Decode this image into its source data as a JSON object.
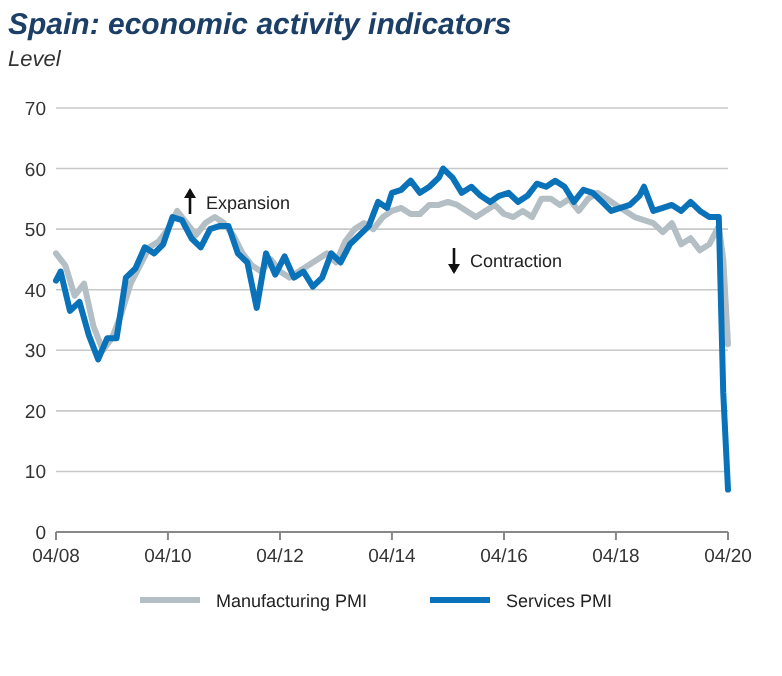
{
  "chart_data": {
    "type": "line",
    "title": "Spain: economic activity indicators",
    "subtitle": "Level",
    "annotations": [
      "Expansion",
      "Contraction"
    ],
    "xlim": [
      "2008-04",
      "2020-04"
    ],
    "xticks": [
      {
        "value": "2008-04",
        "label": "04/08"
      },
      {
        "value": "2010-04",
        "label": "04/10"
      },
      {
        "value": "2012-04",
        "label": "04/12"
      },
      {
        "value": "2014-04",
        "label": "04/14"
      },
      {
        "value": "2016-04",
        "label": "04/16"
      },
      {
        "value": "2018-04",
        "label": "04/18"
      },
      {
        "value": "2020-04",
        "label": "04/20"
      }
    ],
    "ylim": [
      0,
      70
    ],
    "yticks": [
      0,
      10,
      20,
      30,
      40,
      50,
      60,
      70
    ],
    "grid": "y",
    "legend": "bottom",
    "line_style": "solid",
    "marker": "none",
    "series": [
      {
        "name": "Manufacturing PMI",
        "color": "#b3bfc4",
        "x": [
          "2008-04",
          "2008-06",
          "2008-08",
          "2008-10",
          "2008-12",
          "2009-02",
          "2009-04",
          "2009-06",
          "2009-08",
          "2009-10",
          "2009-12",
          "2010-02",
          "2010-04",
          "2010-06",
          "2010-08",
          "2010-10",
          "2010-12",
          "2011-02",
          "2011-04",
          "2011-06",
          "2011-08",
          "2011-10",
          "2011-12",
          "2012-02",
          "2012-04",
          "2012-06",
          "2012-08",
          "2012-10",
          "2012-12",
          "2013-02",
          "2013-04",
          "2013-06",
          "2013-08",
          "2013-10",
          "2013-12",
          "2014-02",
          "2014-04",
          "2014-06",
          "2014-08",
          "2014-10",
          "2014-12",
          "2015-02",
          "2015-04",
          "2015-06",
          "2015-08",
          "2015-10",
          "2015-12",
          "2016-02",
          "2016-04",
          "2016-06",
          "2016-08",
          "2016-10",
          "2016-12",
          "2017-02",
          "2017-04",
          "2017-06",
          "2017-08",
          "2017-10",
          "2017-12",
          "2018-02",
          "2018-04",
          "2018-06",
          "2018-08",
          "2018-10",
          "2018-12",
          "2019-02",
          "2019-04",
          "2019-06",
          "2019-08",
          "2019-10",
          "2019-12",
          "2020-02",
          "2020-03",
          "2020-04"
        ],
        "values": [
          46,
          44,
          39,
          41,
          34,
          30,
          32,
          36,
          41,
          44,
          47,
          48,
          50,
          53,
          51,
          49,
          51,
          52,
          51,
          49,
          46,
          44,
          43,
          45,
          43,
          42,
          43,
          44,
          45,
          46,
          44.5,
          48,
          50,
          51,
          50,
          52,
          53,
          53.5,
          52.5,
          52.5,
          54,
          54,
          54.5,
          54,
          53,
          52,
          53,
          54,
          52.5,
          52,
          53,
          52,
          55,
          55,
          54,
          55,
          53,
          55,
          56,
          55,
          54,
          53,
          52,
          51.5,
          51,
          49.5,
          51,
          47.5,
          48.5,
          46.5,
          47.5,
          50.5,
          45,
          31
        ]
      },
      {
        "name": "Services PMI",
        "color": "#0a72b9",
        "x": [
          "2008-04",
          "2008-05",
          "2008-07",
          "2008-09",
          "2008-11",
          "2009-01",
          "2009-03",
          "2009-05",
          "2009-07",
          "2009-09",
          "2009-11",
          "2010-01",
          "2010-03",
          "2010-05",
          "2010-07",
          "2010-09",
          "2010-11",
          "2011-01",
          "2011-03",
          "2011-05",
          "2011-07",
          "2011-09",
          "2011-11",
          "2012-01",
          "2012-03",
          "2012-05",
          "2012-07",
          "2012-09",
          "2012-11",
          "2013-01",
          "2013-03",
          "2013-05",
          "2013-07",
          "2013-09",
          "2013-11",
          "2014-01",
          "2014-03",
          "2014-04",
          "2014-06",
          "2014-08",
          "2014-10",
          "2014-12",
          "2015-02",
          "2015-03",
          "2015-05",
          "2015-07",
          "2015-09",
          "2015-11",
          "2016-01",
          "2016-03",
          "2016-05",
          "2016-07",
          "2016-09",
          "2016-11",
          "2017-01",
          "2017-03",
          "2017-05",
          "2017-07",
          "2017-09",
          "2017-11",
          "2018-01",
          "2018-03",
          "2018-05",
          "2018-07",
          "2018-09",
          "2018-10",
          "2018-12",
          "2019-02",
          "2019-04",
          "2019-06",
          "2019-08",
          "2019-10",
          "2019-12",
          "2020-02",
          "2020-03",
          "2020-04"
        ],
        "values": [
          41.5,
          43,
          36.5,
          38,
          32.5,
          28.5,
          32,
          32,
          42,
          43.5,
          47,
          46,
          47.5,
          52,
          51.5,
          48.5,
          47,
          50,
          50.5,
          50.5,
          46,
          44.5,
          37,
          46,
          42.5,
          45.5,
          42,
          43,
          40.5,
          42,
          46,
          44.5,
          47.5,
          49,
          50.5,
          54.5,
          53.5,
          56,
          56.5,
          58,
          56,
          57,
          58.5,
          60,
          58.5,
          56,
          57,
          55.5,
          54.5,
          55.5,
          56,
          54.5,
          55.5,
          57.5,
          57,
          58,
          57,
          54.5,
          56.5,
          56,
          54.5,
          53,
          53.5,
          54,
          55.5,
          57,
          53,
          53.5,
          54,
          53,
          54.5,
          53,
          52,
          52,
          23,
          7
        ]
      }
    ]
  }
}
